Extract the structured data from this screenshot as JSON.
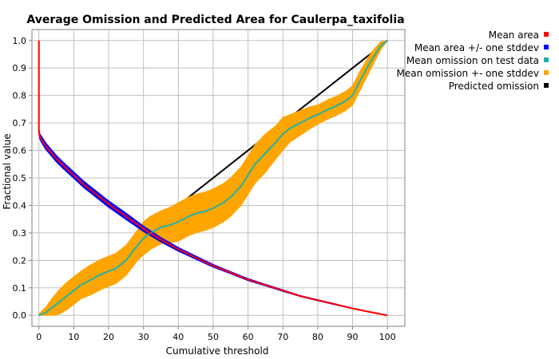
{
  "chart_data": {
    "type": "line",
    "title": "Average Omission and Predicted Area for Caulerpa_taxifolia",
    "xlabel": "Cumulative threshold",
    "ylabel": "Fractional value",
    "xlim": [
      -2,
      105
    ],
    "ylim": [
      -0.04,
      1.04
    ],
    "x_ticks": [
      "0",
      "10",
      "20",
      "30",
      "40",
      "50",
      "60",
      "70",
      "80",
      "90",
      "100"
    ],
    "y_ticks": [
      "0.0",
      "0.1",
      "0.2",
      "0.3",
      "0.4",
      "0.5",
      "0.6",
      "0.7",
      "0.8",
      "0.9",
      "1.0"
    ],
    "grid": true,
    "legend_position": "right",
    "series": [
      {
        "name": "Mean area",
        "color": "#ff0000",
        "x": [
          0,
          0,
          0.3,
          1,
          2,
          3,
          4,
          5,
          7,
          10,
          13,
          15,
          20,
          25,
          30,
          35,
          40,
          45,
          50,
          55,
          60,
          65,
          70,
          75,
          80,
          85,
          90,
          95,
          100
        ],
        "y": [
          1.0,
          0.67,
          0.65,
          0.635,
          0.615,
          0.6,
          0.585,
          0.57,
          0.545,
          0.51,
          0.475,
          0.455,
          0.405,
          0.36,
          0.315,
          0.275,
          0.24,
          0.21,
          0.18,
          0.155,
          0.13,
          0.11,
          0.09,
          0.07,
          0.055,
          0.04,
          0.025,
          0.012,
          0.0
        ]
      },
      {
        "name": "Mean area +/- one stddev",
        "color": "#0000ff",
        "x": [
          0,
          0.3,
          1,
          2,
          3,
          4,
          5,
          7,
          10,
          13,
          15,
          20,
          25,
          30,
          35,
          40,
          45,
          50,
          55,
          60,
          65,
          70,
          75,
          80,
          85,
          90,
          95,
          100
        ],
        "y": [
          0.67,
          0.65,
          0.635,
          0.615,
          0.6,
          0.585,
          0.57,
          0.545,
          0.51,
          0.475,
          0.455,
          0.405,
          0.36,
          0.315,
          0.275,
          0.24,
          0.21,
          0.18,
          0.155,
          0.13,
          0.11,
          0.09,
          0.07,
          0.055,
          0.04,
          0.025,
          0.012,
          0.0
        ],
        "spread": [
          0.01,
          0.01,
          0.012,
          0.012,
          0.012,
          0.012,
          0.012,
          0.012,
          0.012,
          0.012,
          0.012,
          0.012,
          0.012,
          0.01,
          0.008,
          0.007,
          0.006,
          0.005,
          0.004,
          0.004,
          0.003,
          0.003,
          0.002,
          0.002,
          0.002,
          0.001,
          0.001,
          0.0
        ]
      },
      {
        "name": "Mean omission on test data",
        "color": "#20b2aa",
        "x": [
          0,
          2,
          4,
          6,
          8,
          10,
          12,
          15,
          18,
          20,
          22,
          25,
          28,
          30,
          32,
          35,
          38,
          40,
          43,
          45,
          48,
          50,
          53,
          55,
          58,
          60,
          62,
          65,
          68,
          70,
          72,
          75,
          78,
          80,
          83,
          85,
          88,
          90,
          92,
          95,
          98,
          100
        ],
        "y": [
          0.0,
          0.01,
          0.03,
          0.05,
          0.07,
          0.09,
          0.11,
          0.13,
          0.15,
          0.16,
          0.17,
          0.2,
          0.25,
          0.28,
          0.3,
          0.32,
          0.33,
          0.34,
          0.36,
          0.37,
          0.38,
          0.39,
          0.41,
          0.43,
          0.47,
          0.51,
          0.55,
          0.59,
          0.63,
          0.66,
          0.68,
          0.7,
          0.72,
          0.73,
          0.75,
          0.76,
          0.78,
          0.8,
          0.85,
          0.92,
          0.98,
          1.0
        ]
      },
      {
        "name": "Mean omission +- one stddev",
        "color": "#ffa500",
        "x": [
          0,
          2,
          4,
          6,
          8,
          10,
          12,
          15,
          18,
          20,
          22,
          25,
          28,
          30,
          32,
          35,
          38,
          40,
          43,
          45,
          48,
          50,
          53,
          55,
          58,
          60,
          62,
          65,
          68,
          70,
          72,
          75,
          78,
          80,
          83,
          85,
          88,
          90,
          92,
          95,
          98,
          100
        ],
        "y": [
          0.0,
          0.01,
          0.03,
          0.05,
          0.07,
          0.09,
          0.11,
          0.13,
          0.15,
          0.16,
          0.17,
          0.2,
          0.25,
          0.28,
          0.3,
          0.32,
          0.33,
          0.34,
          0.36,
          0.37,
          0.38,
          0.39,
          0.41,
          0.43,
          0.47,
          0.51,
          0.55,
          0.59,
          0.63,
          0.66,
          0.68,
          0.7,
          0.72,
          0.73,
          0.75,
          0.76,
          0.78,
          0.8,
          0.85,
          0.92,
          0.98,
          1.0
        ],
        "spread": [
          0.005,
          0.02,
          0.035,
          0.045,
          0.05,
          0.05,
          0.05,
          0.055,
          0.055,
          0.055,
          0.055,
          0.055,
          0.055,
          0.06,
          0.06,
          0.06,
          0.065,
          0.07,
          0.07,
          0.07,
          0.07,
          0.07,
          0.07,
          0.07,
          0.07,
          0.07,
          0.07,
          0.07,
          0.06,
          0.06,
          0.05,
          0.045,
          0.04,
          0.035,
          0.035,
          0.035,
          0.035,
          0.035,
          0.035,
          0.03,
          0.015,
          0.0
        ]
      },
      {
        "name": "Predicted omission",
        "color": "#000000",
        "x": [
          0,
          100
        ],
        "y": [
          0,
          1
        ]
      }
    ]
  }
}
